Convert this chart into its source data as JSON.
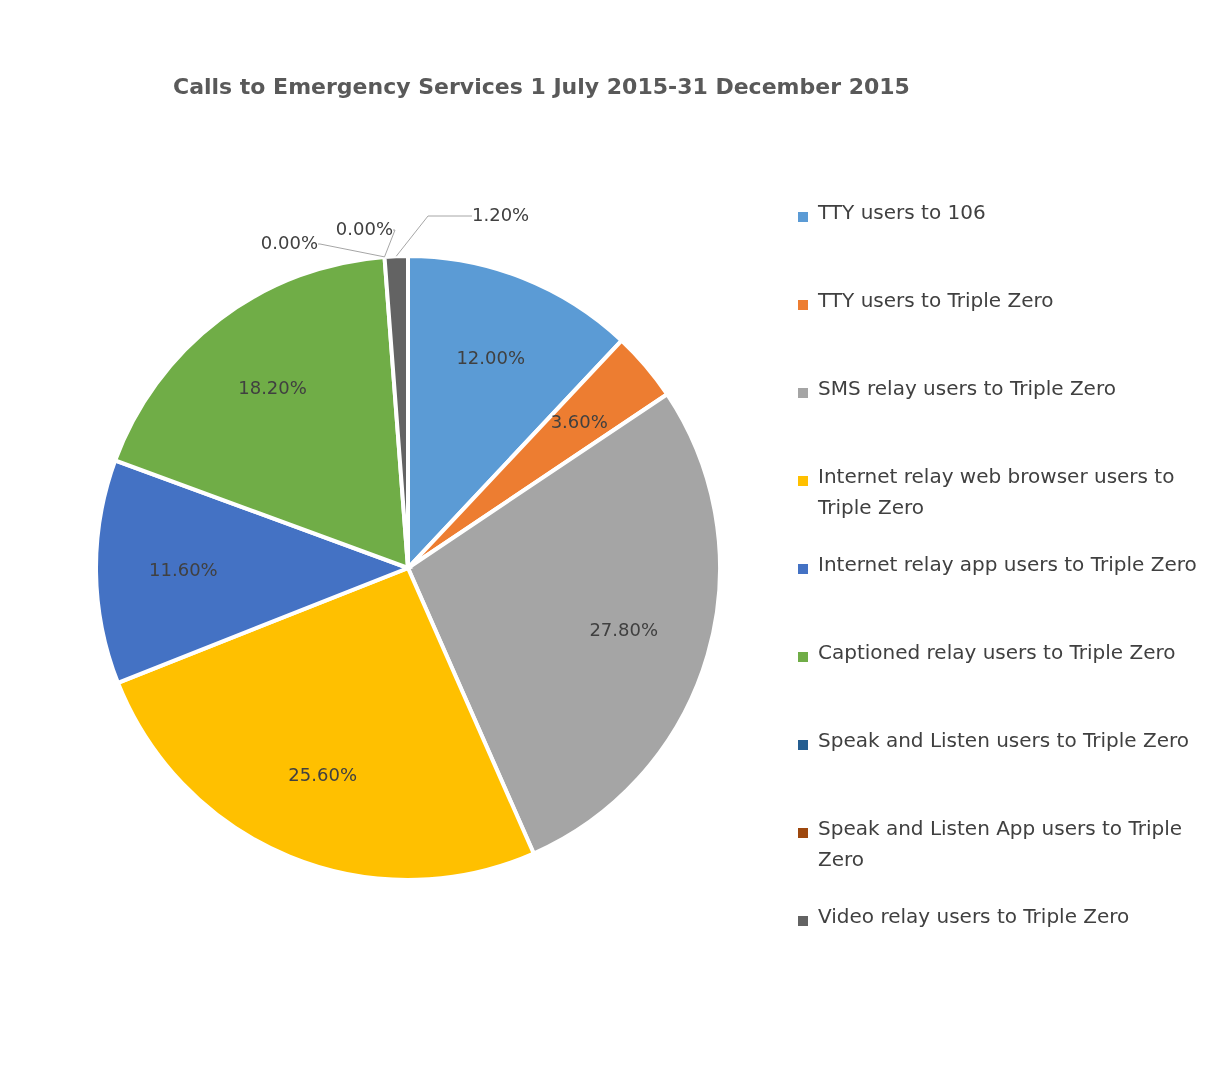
{
  "chart_data": {
    "type": "pie",
    "title": "Calls to Emergency Services 1 July 2015-31 December 2015",
    "categories": [
      "TTY users to 106",
      "TTY users to Triple Zero",
      "SMS relay users to Triple Zero",
      "Internet relay web browser users to Triple Zero",
      "Internet relay app users to Triple Zero",
      "Captioned relay users to Triple Zero",
      "Speak and Listen users to Triple Zero",
      "Speak and Listen App users to Triple Zero",
      "Video relay users to Triple Zero"
    ],
    "values": [
      12.0,
      3.6,
      27.8,
      25.6,
      11.6,
      18.2,
      0.0,
      0.0,
      1.2
    ],
    "value_labels": [
      "12.00%",
      "3.60%",
      "27.80%",
      "25.60%",
      "11.60%",
      "18.20%",
      "0.00%",
      "0.00%",
      "1.20%"
    ],
    "colors": [
      "#5b9bd5",
      "#ed7d31",
      "#a5a5a5",
      "#ffc000",
      "#4472c4",
      "#70ad47",
      "#255e91",
      "#9e480e",
      "#636363"
    ],
    "legend": "right"
  }
}
